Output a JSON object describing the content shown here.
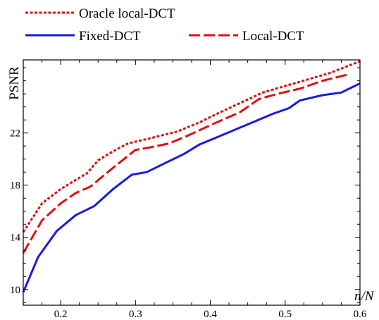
{
  "chart_data": {
    "type": "line",
    "xlabel": "n/N",
    "ylabel": "PSNR",
    "xlim": [
      0.15,
      0.6
    ],
    "ylim": [
      8.8,
      27.6
    ],
    "xticks": [
      0.2,
      0.3,
      0.4,
      0.5,
      0.6
    ],
    "xtick_labels": [
      "0.2",
      "0.3",
      "0.4",
      "0.5",
      "0.6"
    ],
    "yticks": [
      10,
      14,
      18,
      22
    ],
    "ytick_labels": [
      "10",
      "14",
      "18",
      "22"
    ],
    "grid": false,
    "legend_position": "above plot",
    "series": [
      {
        "name": "Oracle local-DCT",
        "color": "#e01010",
        "style": "dotted",
        "x": [
          0.15,
          0.175,
          0.2,
          0.22,
          0.235,
          0.25,
          0.27,
          0.29,
          0.32,
          0.355,
          0.385,
          0.41,
          0.44,
          0.47,
          0.5,
          0.53,
          0.56,
          0.6
        ],
        "y": [
          14.4,
          16.6,
          17.7,
          18.4,
          18.9,
          19.9,
          20.6,
          21.2,
          21.6,
          22.1,
          22.8,
          23.5,
          24.3,
          25.1,
          25.6,
          26.1,
          26.6,
          27.5
        ]
      },
      {
        "name": "Fixed-DCT",
        "color": "#1a1ae0",
        "style": "solid",
        "x": [
          0.15,
          0.17,
          0.195,
          0.22,
          0.245,
          0.27,
          0.295,
          0.315,
          0.34,
          0.365,
          0.385,
          0.41,
          0.435,
          0.46,
          0.485,
          0.505,
          0.52,
          0.55,
          0.575,
          0.6
        ],
        "y": [
          9.8,
          12.5,
          14.5,
          15.7,
          16.4,
          17.7,
          18.8,
          19.0,
          19.7,
          20.4,
          21.1,
          21.7,
          22.3,
          22.9,
          23.5,
          23.9,
          24.5,
          24.9,
          25.1,
          25.8
        ]
      },
      {
        "name": "Local-DCT",
        "color": "#e01010",
        "style": "dashed",
        "x": [
          0.15,
          0.175,
          0.2,
          0.22,
          0.24,
          0.265,
          0.3,
          0.32,
          0.345,
          0.37,
          0.4,
          0.44,
          0.465,
          0.49,
          0.52,
          0.55,
          0.585
        ],
        "y": [
          12.8,
          15.3,
          16.6,
          17.4,
          17.9,
          19.1,
          20.7,
          20.9,
          21.2,
          21.8,
          22.6,
          23.6,
          24.6,
          25.0,
          25.4,
          26.0,
          26.5
        ]
      }
    ]
  }
}
